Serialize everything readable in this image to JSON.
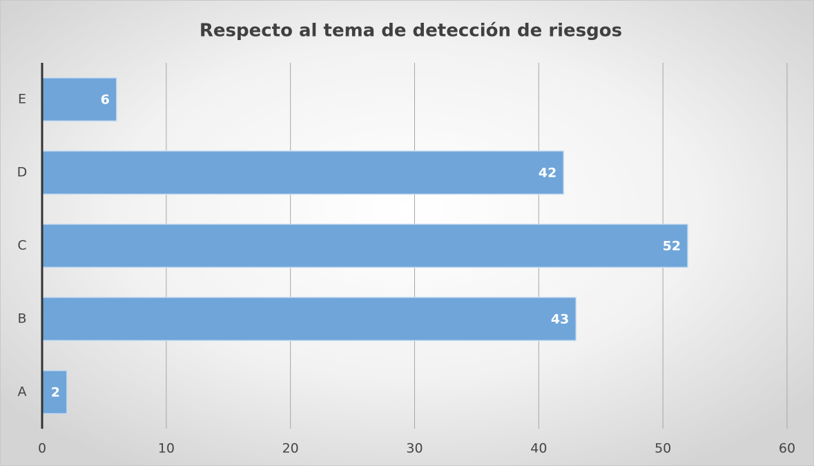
{
  "chart_data": {
    "type": "bar",
    "orientation": "horizontal",
    "title": "Respecto al tema de detección de riesgos",
    "categories": [
      "A",
      "B",
      "C",
      "D",
      "E"
    ],
    "values": [
      2,
      43,
      52,
      42,
      6
    ],
    "color": "#6fa5d9",
    "xlim": [
      0,
      60
    ],
    "xticks": [
      0,
      10,
      20,
      30,
      40,
      50,
      60
    ],
    "grid": true
  }
}
